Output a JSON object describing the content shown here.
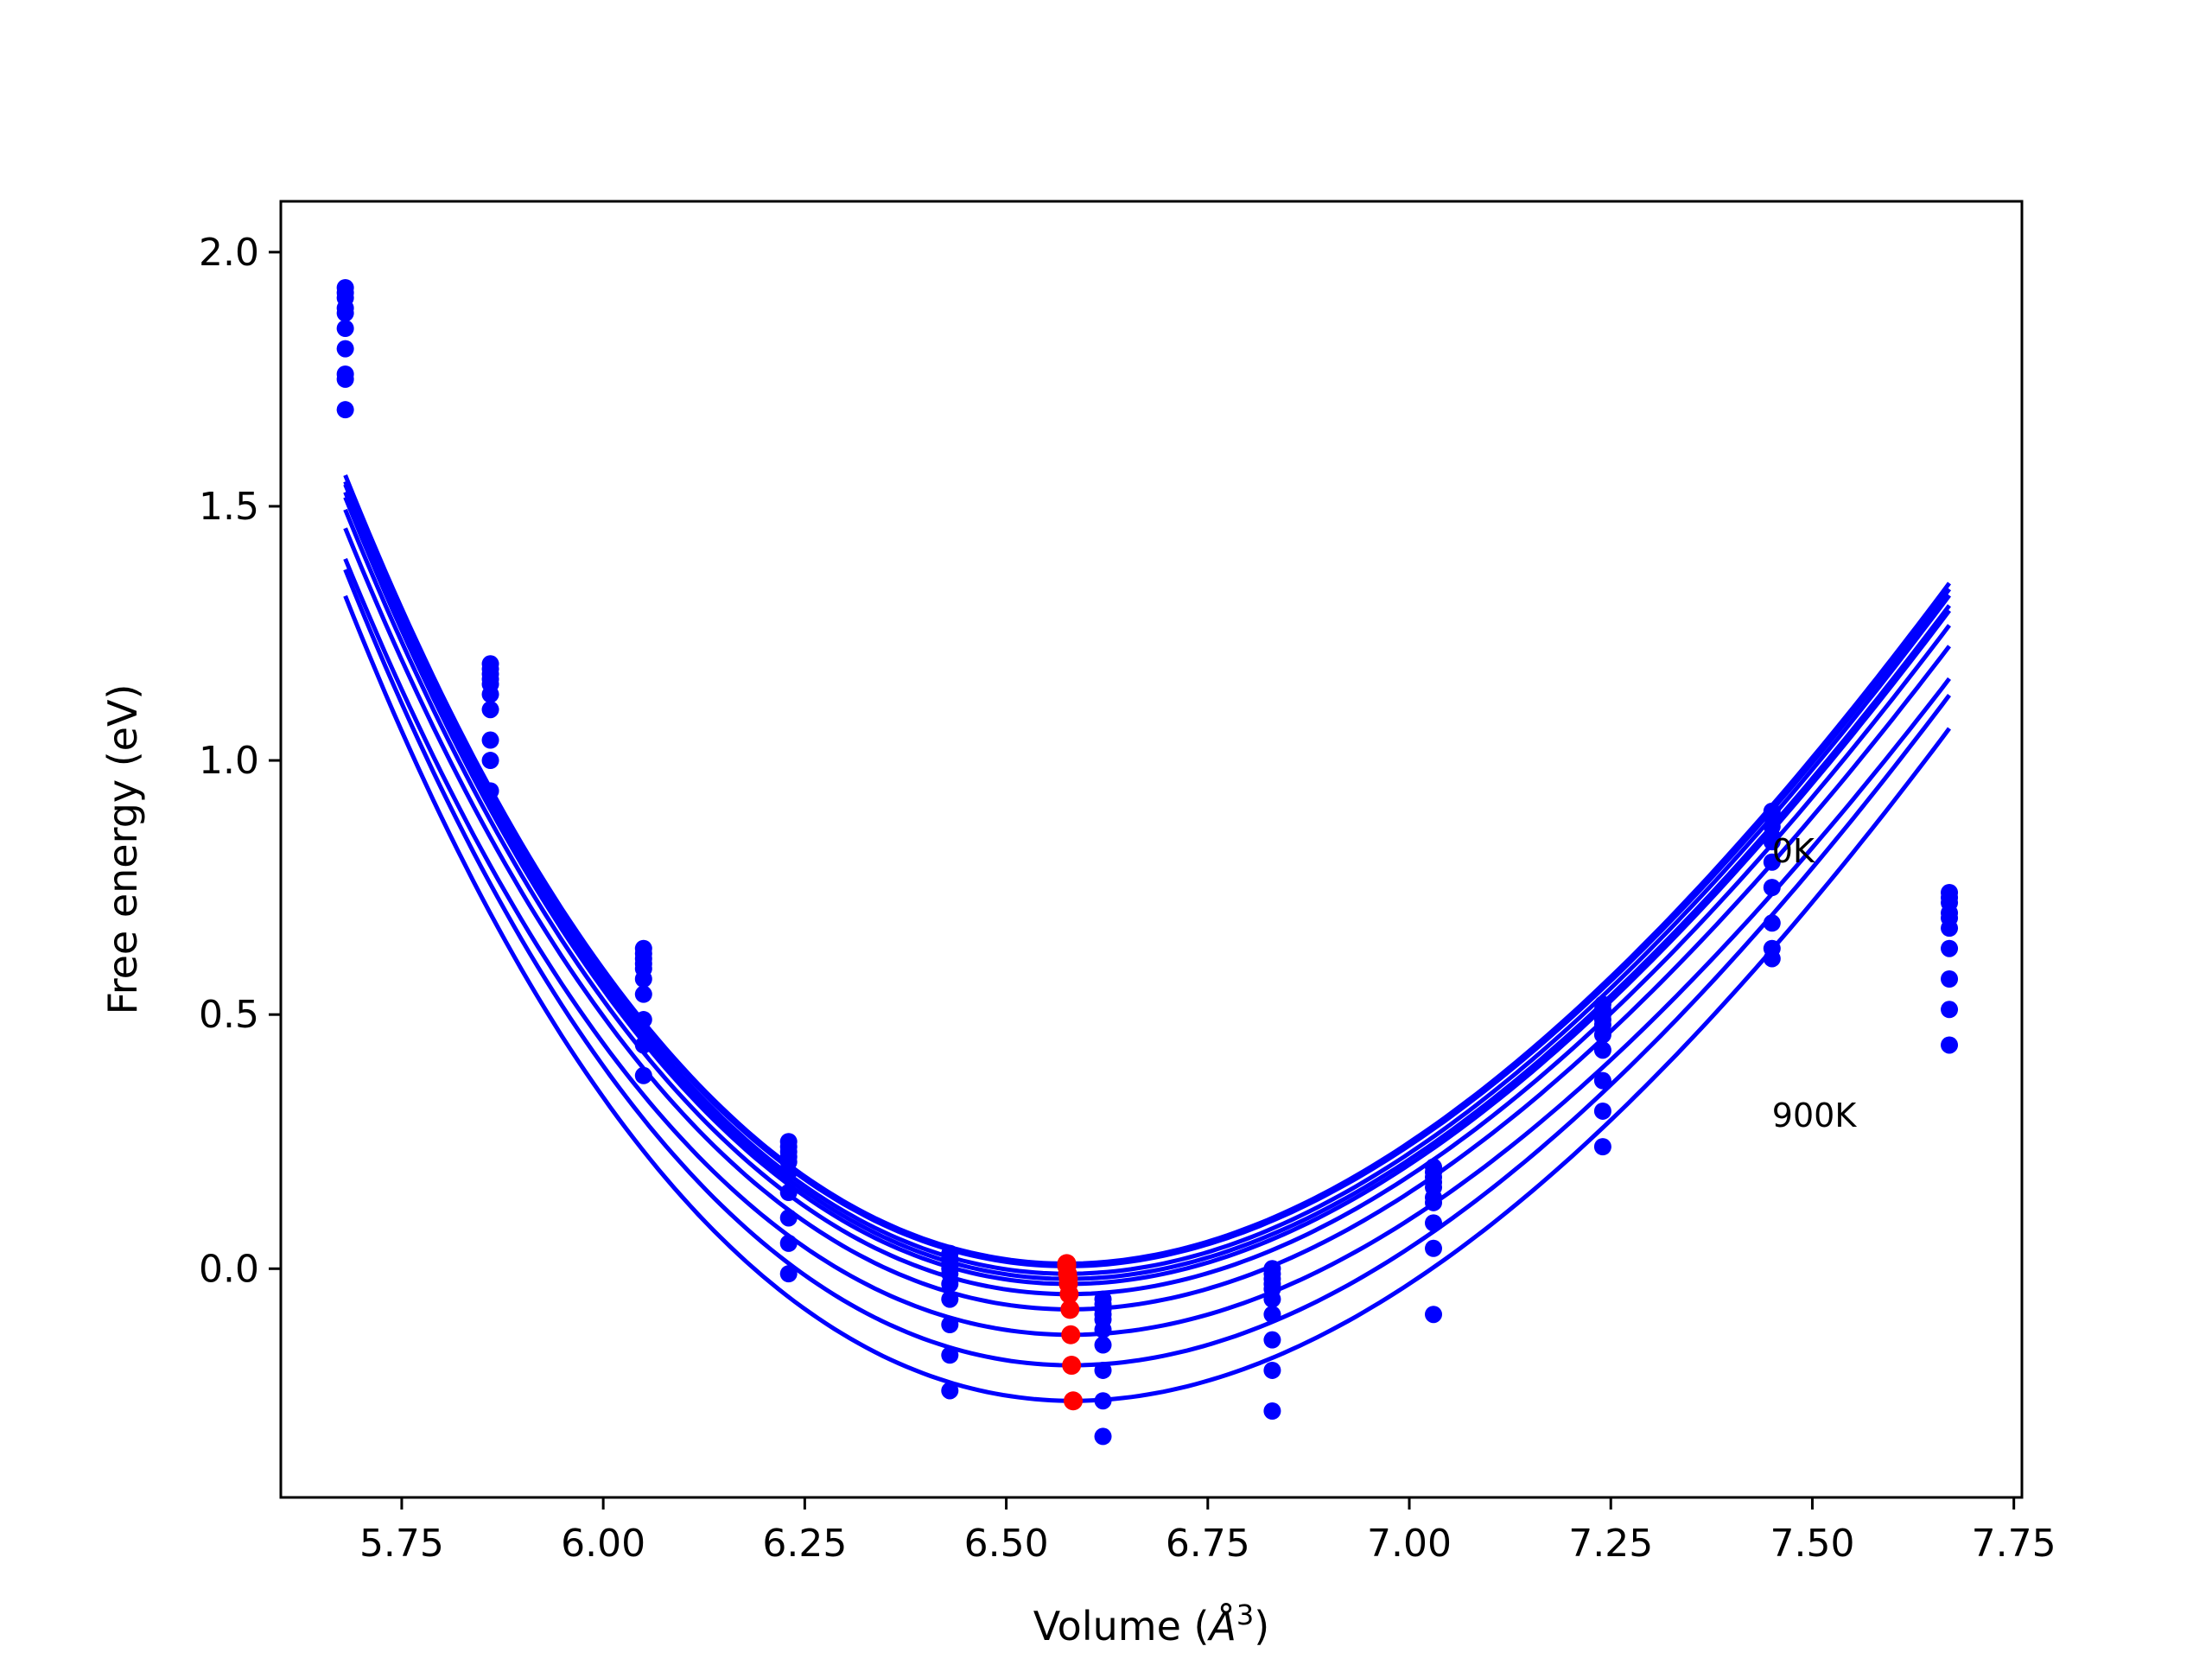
{
  "chart_data": {
    "type": "line",
    "title": "",
    "xlabel_prefix": "Volume (",
    "xlabel_symbol": "Å",
    "xlabel_exp": "3",
    "xlabel_suffix": ")",
    "ylabel": "Free energy (eV)",
    "xlim": [
      5.6,
      7.76
    ],
    "ylim": [
      -0.45,
      2.1
    ],
    "xticks": [
      "5.75",
      "6.00",
      "6.25",
      "6.50",
      "6.75",
      "7.00",
      "7.25",
      "7.50",
      "7.75"
    ],
    "xtick_values": [
      5.75,
      6.0,
      6.25,
      6.5,
      6.75,
      7.0,
      7.25,
      7.5,
      7.75
    ],
    "yticks": [
      "0.0",
      "0.5",
      "1.0",
      "1.5",
      "2.0"
    ],
    "ytick_values": [
      0.0,
      0.5,
      1.0,
      1.5,
      2.0
    ],
    "grid": false,
    "annotations": [
      {
        "text": "0K",
        "x": 7.45,
        "y": 0.82
      },
      {
        "text": "900K",
        "x": 7.45,
        "y": 0.3
      }
    ],
    "line_color": "#0000ff",
    "point_color": "#0000ff",
    "minima_color": "#ff0000",
    "x_samples": [
      5.68,
      5.86,
      6.05,
      6.23,
      6.43,
      6.62,
      6.83,
      7.03,
      7.24,
      7.45,
      7.67
    ],
    "curve_x_range": [
      5.68,
      7.67
    ],
    "series": [
      {
        "y": [
          1.93,
          1.19,
          0.63,
          0.25,
          0.03,
          -0.06,
          0.0,
          0.2,
          0.52,
          0.9,
          0.74
        ],
        "v0": 6.575,
        "e_min": 0.01
      },
      {
        "y": [
          1.92,
          1.18,
          0.62,
          0.24,
          0.02,
          -0.07,
          -0.01,
          0.19,
          0.51,
          0.89,
          0.73
        ],
        "v0": 6.575,
        "e_min": 0.005
      },
      {
        "y": [
          1.91,
          1.17,
          0.61,
          0.23,
          0.01,
          -0.08,
          -0.02,
          0.18,
          0.5,
          0.87,
          0.72
        ],
        "v0": 6.576,
        "e_min": -0.01
      },
      {
        "y": [
          1.89,
          1.16,
          0.6,
          0.22,
          0.0,
          -0.09,
          -0.03,
          0.17,
          0.49,
          0.85,
          0.7
        ],
        "v0": 6.577,
        "e_min": -0.02
      },
      {
        "y": [
          1.88,
          1.15,
          0.59,
          0.21,
          -0.01,
          -0.1,
          -0.04,
          0.16,
          0.48,
          0.84,
          0.69
        ],
        "v0": 6.577,
        "e_min": -0.03
      },
      {
        "y": [
          1.85,
          1.13,
          0.57,
          0.19,
          -0.03,
          -0.12,
          -0.06,
          0.14,
          0.46,
          0.8,
          0.67
        ],
        "v0": 6.578,
        "e_min": -0.05
      },
      {
        "y": [
          1.81,
          1.1,
          0.54,
          0.15,
          -0.06,
          -0.15,
          -0.09,
          0.13,
          0.43,
          0.75,
          0.63
        ],
        "v0": 6.579,
        "e_min": -0.08
      },
      {
        "y": [
          1.75,
          1.04,
          0.49,
          0.1,
          -0.11,
          -0.2,
          -0.14,
          0.09,
          0.37,
          0.68,
          0.57
        ],
        "v0": 6.58,
        "e_min": -0.13
      },
      {
        "y": [
          1.76,
          1.0,
          0.44,
          0.05,
          -0.17,
          -0.26,
          -0.2,
          0.04,
          0.31,
          0.63,
          0.51
        ],
        "v0": 6.581,
        "e_min": -0.19
      },
      {
        "y": [
          1.69,
          0.94,
          0.38,
          -0.01,
          -0.24,
          -0.33,
          -0.28,
          -0.09,
          0.24,
          0.61,
          0.44
        ],
        "v0": 6.583,
        "e_min": -0.26
      }
    ]
  }
}
